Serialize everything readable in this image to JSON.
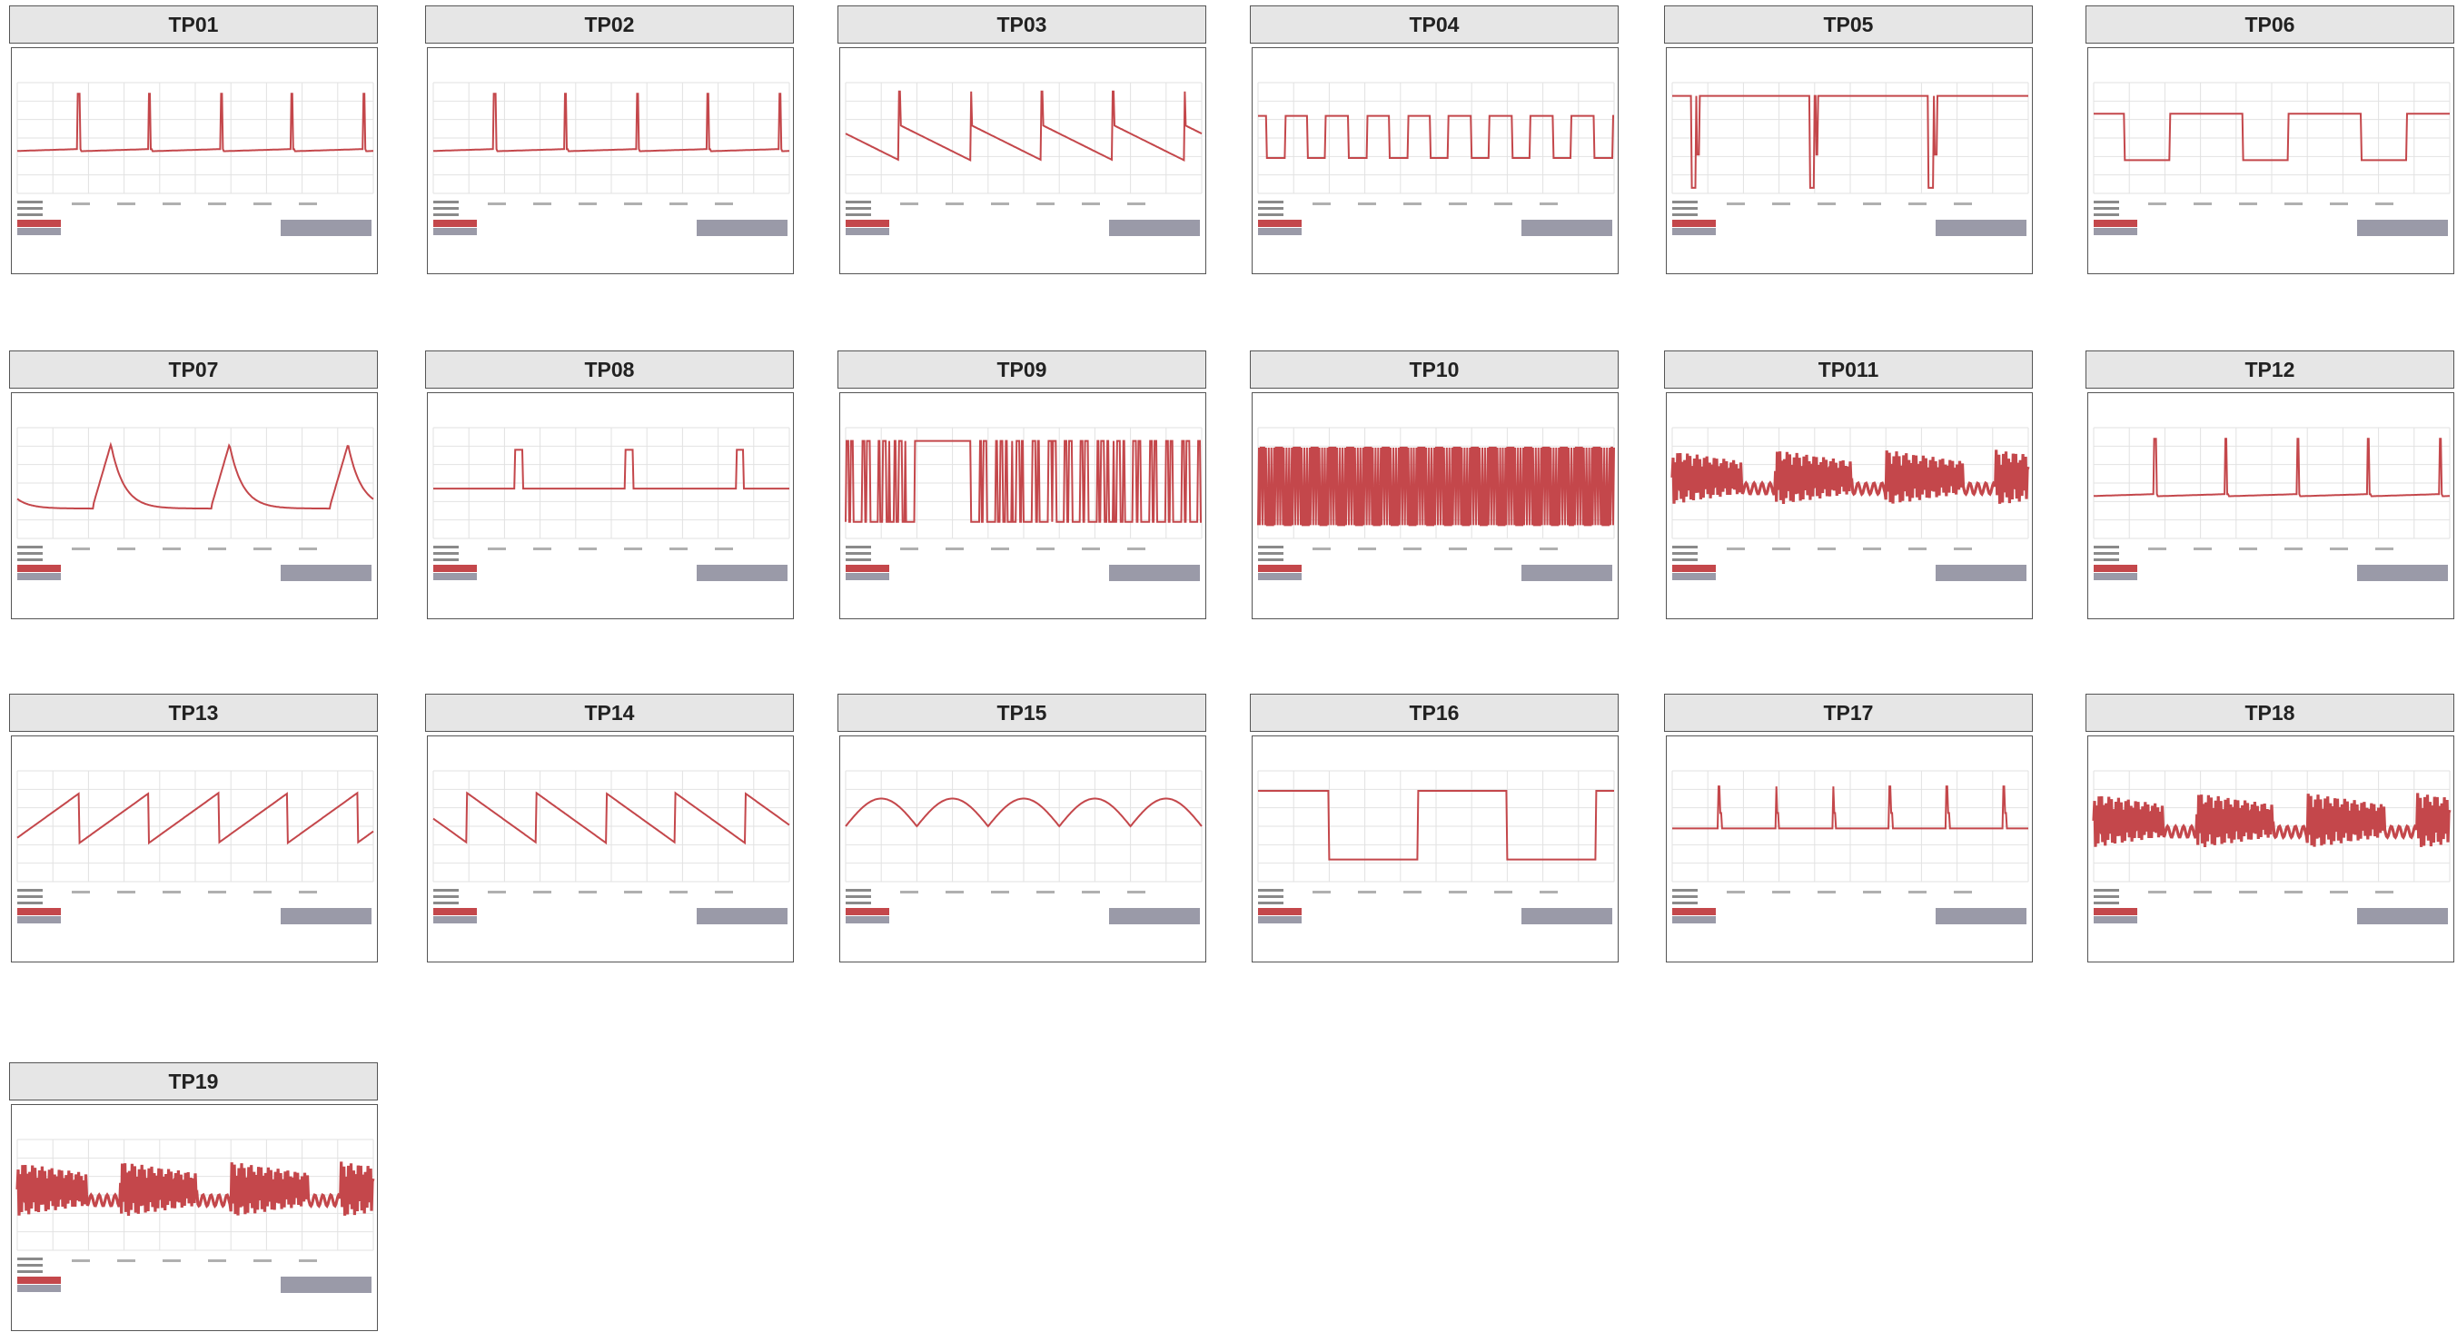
{
  "panels": [
    {
      "label": "TP01",
      "wave": "spike-up"
    },
    {
      "label": "TP02",
      "wave": "spike-up"
    },
    {
      "label": "TP03",
      "wave": "sawtooth-down"
    },
    {
      "label": "TP04",
      "wave": "square"
    },
    {
      "label": "TP05",
      "wave": "dip"
    },
    {
      "label": "TP06",
      "wave": "square-long"
    },
    {
      "label": "TP07",
      "wave": "charge-decay"
    },
    {
      "label": "TP08",
      "wave": "pulse"
    },
    {
      "label": "TP09",
      "wave": "pwm-sparse"
    },
    {
      "label": "TP10",
      "wave": "pwm-dense"
    },
    {
      "label": "TP011",
      "wave": "burst"
    },
    {
      "label": "TP12",
      "wave": "spike-up"
    },
    {
      "label": "TP13",
      "wave": "ramp-up"
    },
    {
      "label": "TP14",
      "wave": "ramp-down"
    },
    {
      "label": "TP15",
      "wave": "arcs"
    },
    {
      "label": "TP16",
      "wave": "square-low"
    },
    {
      "label": "TP17",
      "wave": "spike-up-2"
    },
    {
      "label": "TP18",
      "wave": "burst"
    },
    {
      "label": "TP19",
      "wave": "burst"
    }
  ],
  "colors": {
    "trace": "#c4474b",
    "grid": "#e2e2e2",
    "border": "#555555",
    "header_bg": "#e6e6e6",
    "footer_box": "#9a9aa8",
    "footer_red": "#c4474b"
  }
}
